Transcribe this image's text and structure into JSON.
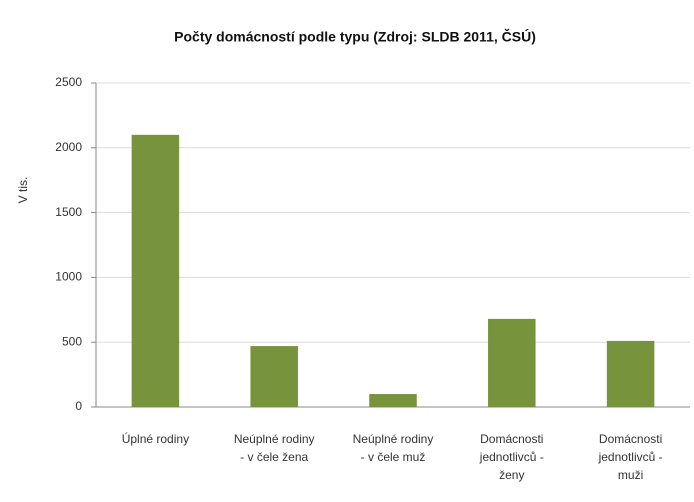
{
  "chart_data": {
    "type": "bar",
    "title": "Počty domácností  podle typu (Zdroj: SLDB 2011, ČSÚ)",
    "y_label": "V tis.",
    "categories": [
      [
        "Úplné rodiny"
      ],
      [
        "Neúplné rodiny",
        "- v čele žena"
      ],
      [
        "Neúplné rodiny",
        "- v čele muž"
      ],
      [
        "Domácnosti",
        "jednotlivců -",
        "ženy"
      ],
      [
        "Domácnosti",
        "jednotlivců -",
        "muži"
      ]
    ],
    "values": [
      2100,
      470,
      100,
      680,
      510
    ],
    "color": "#77933c",
    "ylim": [
      0,
      2500
    ],
    "yticks": [
      0,
      500,
      1000,
      1500,
      2000,
      2500
    ],
    "grid": true
  }
}
